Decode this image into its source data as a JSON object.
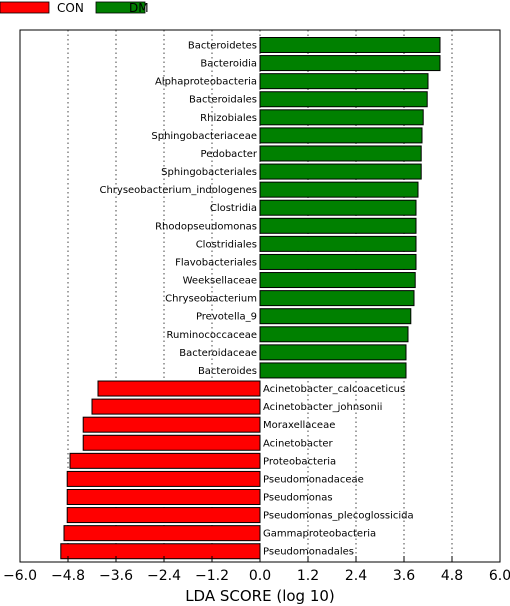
{
  "chart_data": {
    "type": "bar",
    "orientation": "horizontal",
    "xlabel": "LDA SCORE (log 10)",
    "xlim": [
      -6.0,
      6.0
    ],
    "xticks": [
      "−6.0",
      "−4.8",
      "−3.6",
      "−2.4",
      "−1.2",
      "0.0",
      "1.2",
      "2.4",
      "3.6",
      "4.8",
      "6.0"
    ],
    "grid": "vertical dotted",
    "legend_placement": "top-left",
    "legend": [
      {
        "name": "CON",
        "color": "#ff0000"
      },
      {
        "name": "DM",
        "color": "#008000"
      }
    ],
    "series": [
      {
        "name": "DM",
        "color": "#008000",
        "categories": [
          "Bacteroidetes",
          "Bacteroidia",
          "Alphaproteobacteria",
          "Bacteroidales",
          "Rhizobiales",
          "Sphingobacteriaceae",
          "Pedobacter",
          "Sphingobacteriales",
          "Chryseobacterium_indologenes",
          "Clostridia",
          "Rhodopseudomonas",
          "Clostridiales",
          "Flavobacteriales",
          "Weeksellaceae",
          "Chryseobacterium",
          "Prevotella_9",
          "Ruminococcaceae",
          "Bacteroidaceae",
          "Bacteroides"
        ],
        "values": [
          4.5,
          4.5,
          4.2,
          4.18,
          4.08,
          4.05,
          4.03,
          4.03,
          3.95,
          3.9,
          3.9,
          3.9,
          3.9,
          3.88,
          3.85,
          3.77,
          3.7,
          3.65,
          3.65
        ]
      },
      {
        "name": "CON",
        "color": "#ff0000",
        "categories": [
          "Acinetobacter_calcoaceticus",
          "Acinetobacter_johnsonii",
          "Moraxellaceae",
          "Acinetobacter",
          "Proteobacteria",
          "Pseudomonadaceae",
          "Pseudomonas",
          "Pseudomonas_plecoglossicida",
          "Gammaproteobacteria",
          "Pseudomonadales"
        ],
        "values": [
          -4.05,
          -4.2,
          -4.42,
          -4.42,
          -4.75,
          -4.82,
          -4.82,
          -4.82,
          -4.9,
          -4.98
        ]
      }
    ]
  }
}
